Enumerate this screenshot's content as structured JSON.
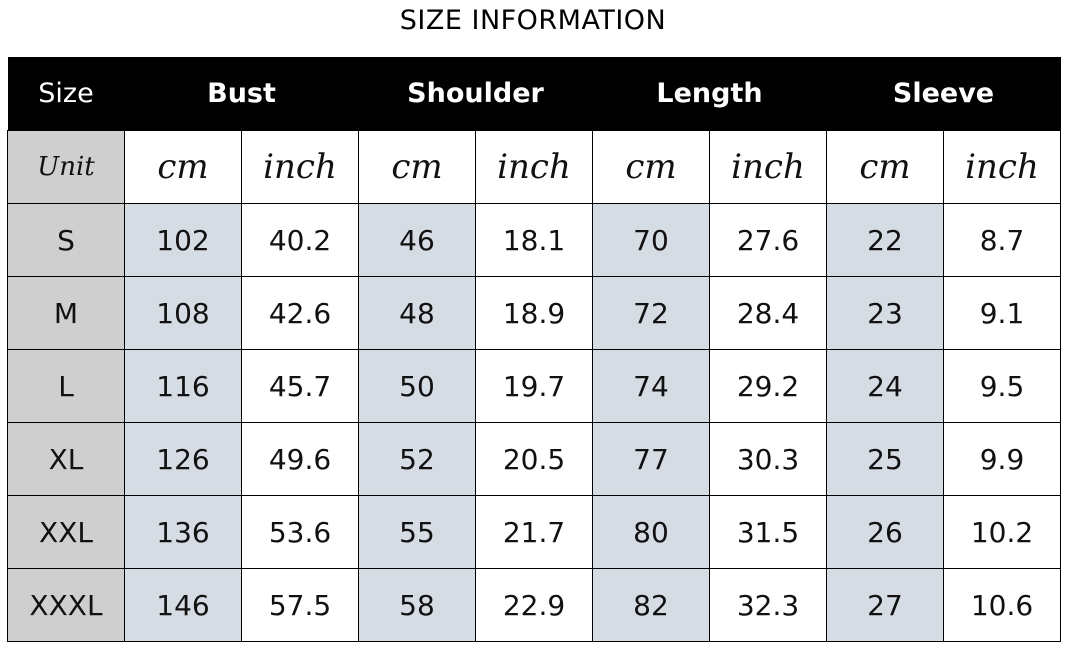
{
  "title": "SIZE INFORMATION",
  "headers": [
    "Size",
    "Bust",
    "Shoulder",
    "Length",
    "Sleeve"
  ],
  "unit_label": "Unit",
  "units": [
    "cm",
    "inch",
    "cm",
    "inch",
    "cm",
    "inch",
    "cm",
    "inch"
  ],
  "colors": {
    "header_bg": "#000000",
    "size_column_bg": "#d0cfcf",
    "cm_column_bg": "#d6dce4"
  },
  "rows": [
    {
      "size": "S",
      "values": [
        "102",
        "40.2",
        "46",
        "18.1",
        "70",
        "27.6",
        "22",
        "8.7"
      ]
    },
    {
      "size": "M",
      "values": [
        "108",
        "42.6",
        "48",
        "18.9",
        "72",
        "28.4",
        "23",
        "9.1"
      ]
    },
    {
      "size": "L",
      "values": [
        "116",
        "45.7",
        "50",
        "19.7",
        "74",
        "29.2",
        "24",
        "9.5"
      ]
    },
    {
      "size": "XL",
      "values": [
        "126",
        "49.6",
        "52",
        "20.5",
        "77",
        "30.3",
        "25",
        "9.9"
      ]
    },
    {
      "size": "XXL",
      "values": [
        "136",
        "53.6",
        "55",
        "21.7",
        "80",
        "31.5",
        "26",
        "10.2"
      ]
    },
    {
      "size": "XXXL",
      "values": [
        "146",
        "57.5",
        "58",
        "22.9",
        "82",
        "32.3",
        "27",
        "10.6"
      ]
    }
  ]
}
